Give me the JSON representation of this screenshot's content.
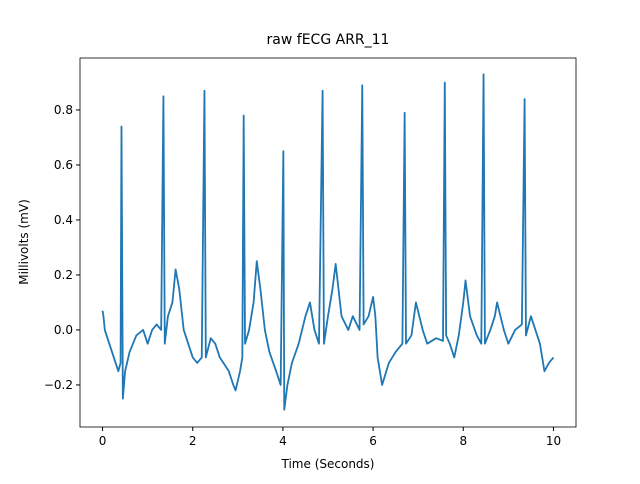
{
  "chart_data": {
    "type": "line",
    "title": "raw fECG ARR_11",
    "xlabel": "Time (Seconds)",
    "ylabel": "Millivolts (mV)",
    "color": "#1f77b4",
    "x": [
      0,
      0.02,
      0.05,
      0.15,
      0.25,
      0.35,
      0.4,
      0.42,
      0.45,
      0.5,
      0.6,
      0.75,
      0.9,
      1.0,
      1.1,
      1.2,
      1.3,
      1.35,
      1.38,
      1.45,
      1.55,
      1.62,
      1.7,
      1.8,
      1.9,
      2.0,
      2.1,
      2.2,
      2.26,
      2.29,
      2.4,
      2.5,
      2.6,
      2.8,
      2.9,
      2.95,
      3.05,
      3.1,
      3.13,
      3.16,
      3.25,
      3.35,
      3.42,
      3.5,
      3.6,
      3.7,
      3.85,
      3.95,
      4.01,
      4.03,
      4.1,
      4.2,
      4.35,
      4.5,
      4.6,
      4.7,
      4.8,
      4.88,
      4.91,
      5.0,
      5.1,
      5.17,
      5.3,
      5.45,
      5.55,
      5.7,
      5.76,
      5.79,
      5.9,
      6.0,
      6.05,
      6.1,
      6.2,
      6.35,
      6.5,
      6.65,
      6.7,
      6.73,
      6.85,
      6.95,
      7.1,
      7.2,
      7.4,
      7.55,
      7.59,
      7.62,
      7.7,
      7.8,
      7.9,
      8.0,
      8.05,
      8.15,
      8.3,
      8.4,
      8.45,
      8.48,
      8.6,
      8.7,
      8.75,
      8.9,
      9.0,
      9.15,
      9.3,
      9.36,
      9.39,
      9.5,
      9.6,
      9.7,
      9.8,
      9.9,
      10.0
    ],
    "values": [
      0.07,
      0.05,
      0.0,
      -0.05,
      -0.1,
      -0.15,
      -0.12,
      0.74,
      -0.25,
      -0.15,
      -0.08,
      -0.02,
      0.0,
      -0.05,
      0.0,
      0.02,
      0.0,
      0.85,
      -0.05,
      0.05,
      0.1,
      0.22,
      0.15,
      0.0,
      -0.05,
      -0.1,
      -0.12,
      -0.1,
      0.87,
      -0.1,
      -0.03,
      -0.05,
      -0.1,
      -0.15,
      -0.2,
      -0.22,
      -0.15,
      -0.1,
      0.78,
      -0.05,
      0.0,
      0.1,
      0.25,
      0.15,
      0.0,
      -0.08,
      -0.15,
      -0.2,
      0.65,
      -0.29,
      -0.2,
      -0.12,
      -0.05,
      0.05,
      0.1,
      0.0,
      -0.05,
      0.87,
      -0.05,
      0.05,
      0.15,
      0.24,
      0.05,
      0.0,
      0.05,
      0.0,
      0.89,
      0.02,
      0.05,
      0.12,
      0.05,
      -0.1,
      -0.2,
      -0.12,
      -0.08,
      -0.05,
      0.79,
      -0.05,
      -0.02,
      0.1,
      0.0,
      -0.05,
      -0.03,
      -0.04,
      0.9,
      -0.02,
      -0.05,
      -0.1,
      -0.02,
      0.1,
      0.18,
      0.05,
      -0.02,
      -0.05,
      0.93,
      -0.05,
      0.0,
      0.05,
      0.1,
      0.0,
      -0.05,
      0.0,
      0.02,
      0.84,
      -0.02,
      0.05,
      0.0,
      -0.05,
      -0.15,
      -0.12,
      -0.1
    ],
    "xlim": [
      -0.5,
      10.5
    ],
    "ylim": [
      -0.353,
      0.989
    ],
    "xticks": [
      0,
      2,
      4,
      6,
      8,
      10
    ],
    "yticks": [
      {
        "value": -0.2,
        "label": "−0.2"
      },
      {
        "value": 0,
        "label": "0.0"
      },
      0.2,
      0.4,
      0.6,
      0.8
    ]
  }
}
